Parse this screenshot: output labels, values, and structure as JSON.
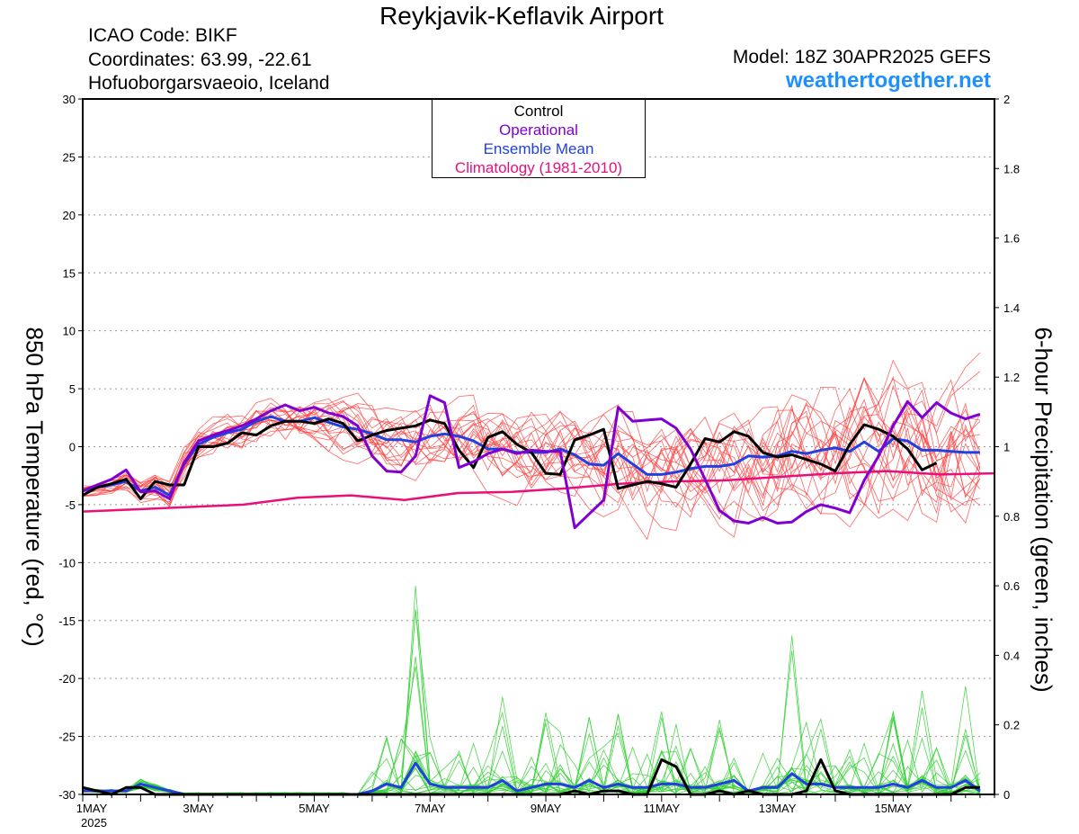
{
  "header": {
    "title": "Reykjavik-Keflavik Airport",
    "icao": "ICAO Code: BIKF",
    "coordinates": "Coordinates: 63.99, -22.61",
    "place": "Hofuoborgarsvaeoio, Iceland",
    "model": "Model: 18Z 30APR2025 GEFS",
    "site": "weathertogether.net"
  },
  "axes": {
    "left_label": "850 hPa Temperature (red, °C)",
    "right_label": "6-hour Precipitation (green, inches)",
    "year_label": "2025"
  },
  "legend": {
    "control": "Control",
    "operational": "Operational",
    "ensemble_mean": "Ensemble Mean",
    "climatology": "Climatology (1981-2010)"
  },
  "chart_data": {
    "type": "line",
    "x_unit": "days from 1MAY 00Z (6-hour steps)",
    "x_range": [
      0,
      15.75
    ],
    "x_ticks": [
      {
        "x": 0,
        "label": "1MAY"
      },
      {
        "x": 2,
        "label": "3MAY"
      },
      {
        "x": 4,
        "label": "5MAY"
      },
      {
        "x": 6,
        "label": "7MAY"
      },
      {
        "x": 8,
        "label": "9MAY"
      },
      {
        "x": 10,
        "label": "11MAY"
      },
      {
        "x": 12,
        "label": "13MAY"
      },
      {
        "x": 14,
        "label": "15MAY"
      }
    ],
    "y_left": {
      "label": "850 hPa Temperature (red, °C)",
      "range": [
        -30,
        30
      ],
      "ticks": [
        30,
        25,
        20,
        15,
        10,
        5,
        0,
        -5,
        -10,
        -15,
        -20,
        -25,
        -30
      ]
    },
    "y_right": {
      "label": "6-hour Precipitation (green, inches)",
      "range": [
        0,
        2
      ],
      "ticks": [
        2,
        1.8,
        1.6,
        1.4,
        1.2,
        1,
        0.8,
        0.6,
        0.4,
        0.2,
        0
      ]
    },
    "grid": "horizontal dotted",
    "legend_placement": "top-center",
    "colors": {
      "control": "#000000",
      "operational": "#8000d0",
      "ensemble_mean": "#2040e0",
      "climatology": "#e8107a",
      "members_temp": "#ff4040",
      "members_precip": "#30d030"
    },
    "series": [
      {
        "name": "Control",
        "axis": "left",
        "values": [
          -4.2,
          -3.5,
          -3.2,
          -2.8,
          -4.5,
          -3,
          -3.3,
          -3.3,
          0,
          0,
          0.3,
          1.2,
          1,
          1.8,
          2.2,
          2.2,
          2,
          2.4,
          2,
          0.5,
          1,
          1.4,
          1.6,
          1.8,
          2.3,
          2,
          -0.3,
          -1.8,
          0.8,
          1.3,
          0.2,
          -0.5,
          -2.3,
          -2.4,
          0.6,
          1,
          1.5,
          -3.6,
          -3.3,
          -3,
          -3.2,
          -3.5,
          -1.5,
          0.7,
          0.4,
          1.3,
          0.9,
          -0.5,
          -0.9,
          -0.7,
          -1.1,
          -1.5,
          -2.1,
          0.2,
          1.9,
          1.5,
          0.9,
          -0.2,
          -2,
          -1.4
        ]
      },
      {
        "name": "Operational",
        "axis": "left",
        "values": [
          -3.8,
          -3.3,
          -2.8,
          -2,
          -3.9,
          -3.8,
          -4.5,
          -1.4,
          0.5,
          1,
          1.4,
          1.8,
          2.4,
          3.1,
          3.6,
          3.1,
          3.4,
          2.9,
          2.6,
          1.8,
          -0.8,
          -2.1,
          -2.2,
          -0.8,
          4.4,
          3.8,
          -1.8,
          -1.3,
          -0.6,
          -0.2,
          -0.6,
          -0.3,
          -0.4,
          -0.4,
          -7,
          -5.8,
          -4.6,
          3.4,
          2.2,
          2.3,
          2.4,
          1.6,
          -0.2,
          -2.8,
          -5.5,
          -6.4,
          -6.6,
          -6.1,
          -6.6,
          -6.5,
          -5.6,
          -5,
          -5.3,
          -5.7,
          -2.9,
          -0.8,
          1.8,
          3.9,
          2.5,
          3.8,
          2.9,
          2.4,
          2.8
        ]
      },
      {
        "name": "Ensemble Mean",
        "axis": "left",
        "values": [
          -3.8,
          -3.5,
          -3.3,
          -3,
          -3.8,
          -3.5,
          -4.2,
          -1.5,
          0.2,
          0.8,
          1.2,
          1.5,
          2.2,
          2.6,
          2.2,
          2.2,
          2.5,
          2.1,
          1.7,
          1.5,
          1.1,
          0.6,
          0.6,
          0.4,
          0.9,
          1.1,
          0.9,
          0.5,
          -0.2,
          -0.2,
          -0.5,
          -0.5,
          -0.5,
          -0.2,
          -0.7,
          -1.5,
          -1.6,
          -0.6,
          -1.5,
          -2.4,
          -2.4,
          -2.2,
          -1.9,
          -1.7,
          -1.7,
          -1.5,
          -0.8,
          -0.9,
          -0.8,
          -0.4,
          -0.6,
          -0.3,
          -0.1,
          -0.4,
          0.4,
          -0.4,
          0.7,
          0.5,
          -0.3,
          -0.3,
          -0.4,
          -0.5,
          -0.5
        ]
      },
      {
        "name": "Climatology (1981-2010)",
        "axis": "left",
        "values": [
          -5.6,
          -5.4,
          -5.2,
          -5,
          -4.4,
          -4.2,
          -4.6,
          -4,
          -3.9,
          -3.6,
          -3.2,
          -3,
          -2.9,
          -2.6,
          -2.3,
          -2.1,
          -2.4,
          -2.3
        ]
      },
      {
        "name": "Control precip",
        "axis": "right",
        "values": [
          0.02,
          0.01,
          0,
          0.02,
          0.02,
          0,
          0,
          0,
          0,
          0,
          0,
          0,
          0,
          0,
          0,
          0,
          0,
          0,
          0,
          0,
          0,
          0,
          0,
          0,
          0,
          0,
          0,
          0,
          0,
          0,
          0,
          0,
          0,
          0,
          0.01,
          0,
          0.01,
          0.01,
          0,
          0,
          0.1,
          0.08,
          0,
          0,
          0.01,
          0,
          0.01,
          0,
          0,
          0,
          0.01,
          0.1,
          0.01,
          0,
          0,
          0,
          0,
          0,
          0,
          0,
          0,
          0.02,
          0.02
        ]
      },
      {
        "name": "Ensemble mean precip",
        "axis": "right",
        "values": [
          0.01,
          0.01,
          0.01,
          0.01,
          0.03,
          0.02,
          0.01,
          0,
          0,
          0,
          0,
          0,
          0,
          0,
          0,
          0,
          0,
          0,
          0,
          0,
          0.01,
          0.03,
          0.02,
          0.09,
          0.03,
          0.02,
          0.02,
          0.02,
          0.02,
          0.04,
          0.01,
          0.02,
          0.03,
          0.03,
          0.02,
          0.04,
          0.02,
          0.03,
          0.02,
          0.02,
          0.03,
          0.03,
          0.02,
          0.02,
          0.03,
          0.04,
          0.01,
          0.02,
          0.02,
          0.06,
          0.03,
          0.03,
          0.02,
          0.02,
          0.02,
          0.02,
          0.03,
          0.02,
          0.04,
          0.02,
          0.02,
          0.04,
          0.01
        ]
      }
    ]
  }
}
